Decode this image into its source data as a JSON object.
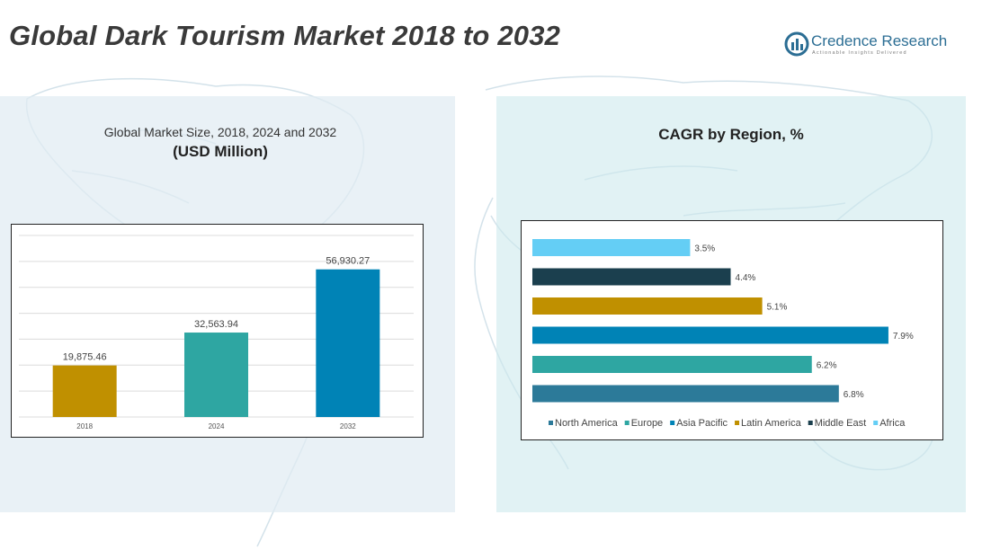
{
  "header": {
    "title": "Global Dark Tourism Market 2018 to 2032",
    "logo_name": "Credence Research",
    "logo_tagline": "Actionable Insights Delivered"
  },
  "left_panel": {
    "subtitle": "Global Market Size, 2018, 2024 and 2032",
    "unit": "(USD Million)"
  },
  "right_panel": {
    "title": "CAGR by Region, %"
  },
  "chart_data": [
    {
      "type": "bar",
      "title": "Global Market Size, 2018, 2024 and 2032",
      "ylabel": "(USD Million)",
      "categories": [
        "2018",
        "2024",
        "2032"
      ],
      "values": [
        19875.46,
        32563.94,
        56930.27
      ],
      "value_labels": [
        "19,875.46",
        "32,563.94",
        "56,930.27"
      ],
      "colors": [
        "#C09000",
        "#2EA6A2",
        "#0083B6"
      ],
      "ylim": [
        0,
        70000
      ],
      "grid": true
    },
    {
      "type": "bar",
      "orientation": "horizontal",
      "title": "CAGR by Region, %",
      "categories": [
        "Africa",
        "Middle East",
        "Latin America",
        "Asia Pacific",
        "Europe",
        "North America"
      ],
      "values": [
        3.5,
        4.4,
        5.1,
        7.9,
        6.2,
        6.8
      ],
      "value_labels": [
        "3.5%",
        "4.4%",
        "5.1%",
        "7.9%",
        "6.2%",
        "6.8%"
      ],
      "colors": [
        "#64CEF5",
        "#1B3F4E",
        "#C09000",
        "#0083B6",
        "#2EA6A2",
        "#2C7A99"
      ],
      "xlim": [
        0,
        8.5
      ],
      "legend": {
        "position": "bottom",
        "entries": [
          "North America",
          "Europe",
          "Asia Pacific",
          "Latin America",
          "Middle East",
          "Africa"
        ],
        "colors": [
          "#2C7A99",
          "#2EA6A2",
          "#0083B6",
          "#C09000",
          "#1B3F4E",
          "#64CEF5"
        ]
      }
    }
  ]
}
